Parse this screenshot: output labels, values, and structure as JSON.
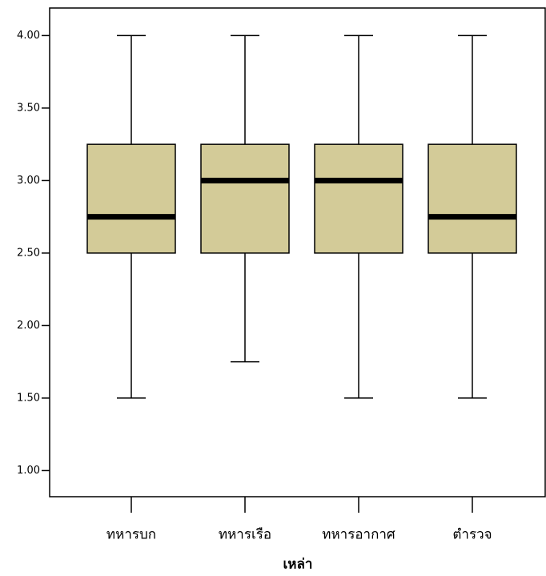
{
  "chart_data": {
    "type": "box",
    "x_label": "เหล่า",
    "categories": [
      "ทหารบก",
      "ทหารเรือ",
      "ทหารอากาศ",
      "ตำรวจ"
    ],
    "boxes": [
      {
        "min": 1.5,
        "q1": 2.5,
        "median": 2.75,
        "q3": 3.25,
        "max": 4.0
      },
      {
        "min": 1.75,
        "q1": 2.5,
        "median": 3.0,
        "q3": 3.25,
        "max": 4.0
      },
      {
        "min": 1.5,
        "q1": 2.5,
        "median": 3.0,
        "q3": 3.25,
        "max": 4.0
      },
      {
        "min": 1.5,
        "q1": 2.5,
        "median": 2.75,
        "q3": 3.25,
        "max": 4.0
      }
    ],
    "color": "#d3cb98",
    "ylim": [
      0.82,
      4.19
    ],
    "yticks": [
      {
        "value": 1,
        "label": "1.00"
      },
      {
        "value": 1.5,
        "label": "1.50"
      },
      {
        "value": 2,
        "label": "2.00"
      },
      {
        "value": 2.5,
        "label": "2.50"
      },
      {
        "value": 3,
        "label": "3.00"
      },
      {
        "value": 3.5,
        "label": "3.50"
      },
      {
        "value": 4,
        "label": "4.00"
      }
    ]
  }
}
